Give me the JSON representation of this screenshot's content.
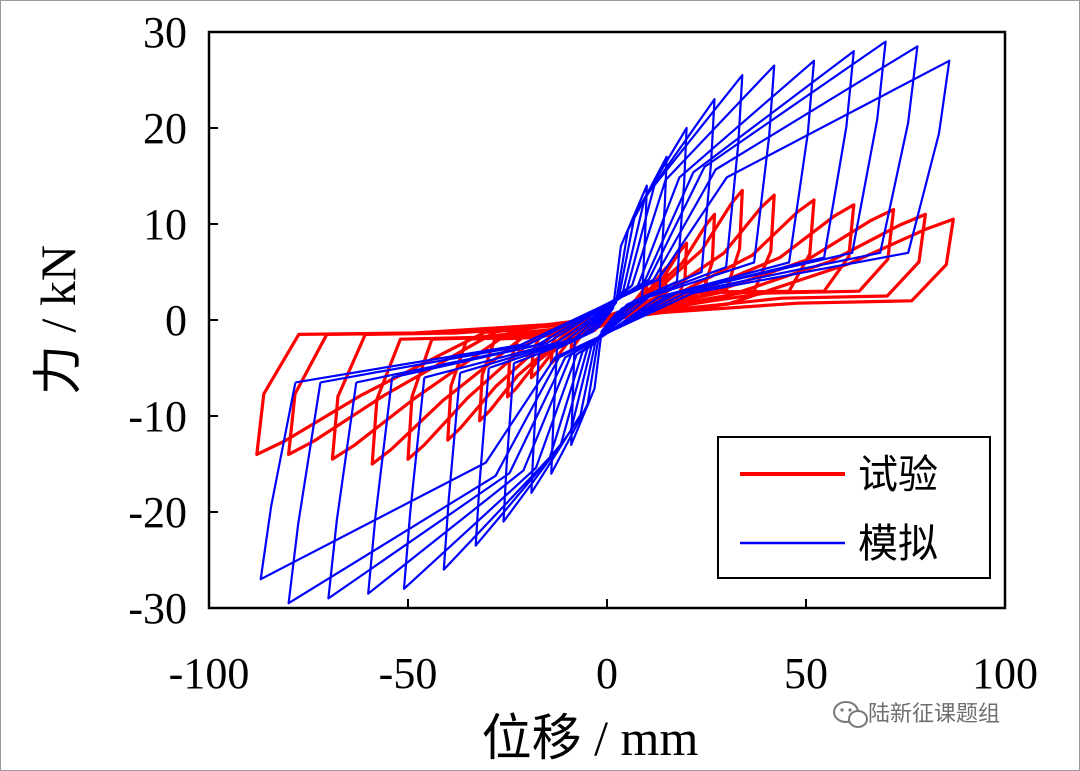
{
  "chart_data": {
    "type": "line",
    "title": "",
    "xlabel": "位移 / mm",
    "ylabel": "力 / kN",
    "xlim": [
      -100,
      100
    ],
    "ylim": [
      -30,
      30
    ],
    "xticks": [
      "-100",
      "-50",
      "0",
      "50",
      "100"
    ],
    "yticks": [
      "30",
      "20",
      "10",
      "0",
      "-10",
      "-20",
      "-30"
    ],
    "grid": false,
    "legend_position": "bottom-right",
    "series": [
      {
        "name": "试验",
        "color": "#ff0000",
        "cycles": [
          {
            "dpos": 10,
            "fpos": 3.5,
            "fposEnd": 1.0,
            "dneg": -9,
            "fneg": -3.0,
            "fnegEnd": -1.0
          },
          {
            "dpos": 15,
            "fpos": 5.5,
            "fposEnd": 1.5,
            "dneg": -14,
            "fneg": -4.5,
            "fnegEnd": -1.2
          },
          {
            "dpos": 20,
            "fpos": 8.0,
            "fposEnd": 2.0,
            "dneg": -19,
            "fneg": -6.0,
            "fnegEnd": -1.5
          },
          {
            "dpos": 27,
            "fpos": 11.0,
            "fposEnd": 2.5,
            "dneg": -25,
            "fneg": -8.0,
            "fnegEnd": -1.7
          },
          {
            "dpos": 34,
            "fpos": 13.5,
            "fposEnd": 3.0,
            "dneg": -32,
            "fneg": -10.5,
            "fnegEnd": -2.0
          },
          {
            "dpos": 42,
            "fpos": 13.0,
            "fposEnd": 3.0,
            "dneg": -40,
            "fneg": -12.5,
            "fnegEnd": -2.0
          },
          {
            "dpos": 52,
            "fpos": 12.5,
            "fposEnd": 3.0,
            "dneg": -50,
            "fneg": -14.5,
            "fnegEnd": -2.0
          },
          {
            "dpos": 62,
            "fpos": 12.0,
            "fposEnd": 3.0,
            "dneg": -59,
            "fneg": -15.0,
            "fnegEnd": -2.0
          },
          {
            "dpos": 72,
            "fpos": 11.5,
            "fposEnd": 3.0,
            "dneg": -69,
            "fneg": -14.5,
            "fnegEnd": -1.5
          },
          {
            "dpos": 80,
            "fpos": 11.0,
            "fposEnd": 2.5,
            "dneg": -80,
            "fneg": -14.0,
            "fnegEnd": -1.5
          },
          {
            "dpos": 87,
            "fpos": 10.5,
            "fposEnd": 2.0,
            "dneg": -88,
            "fneg": -14.0,
            "fnegEnd": -1.5
          }
        ]
      },
      {
        "name": "模拟",
        "color": "#0000ff",
        "cycles": [
          {
            "dpos": 10,
            "fpos": 14.0,
            "fposEnd": 2.0,
            "dneg": -9,
            "fneg": -13.0,
            "fnegEnd": -2.0
          },
          {
            "dpos": 15,
            "fpos": 17.0,
            "fposEnd": 3.0,
            "dneg": -14,
            "fneg": -16.0,
            "fnegEnd": -3.0
          },
          {
            "dpos": 20,
            "fpos": 20.0,
            "fposEnd": 4.0,
            "dneg": -19,
            "fneg": -18.0,
            "fnegEnd": -3.5
          },
          {
            "dpos": 27,
            "fpos": 23.0,
            "fposEnd": 5.0,
            "dneg": -26,
            "fneg": -21.0,
            "fnegEnd": -4.5
          },
          {
            "dpos": 34,
            "fpos": 25.5,
            "fposEnd": 5.5,
            "dneg": -33,
            "fneg": -23.5,
            "fnegEnd": -5.0
          },
          {
            "dpos": 42,
            "fpos": 26.5,
            "fposEnd": 6.0,
            "dneg": -41,
            "fneg": -26.0,
            "fnegEnd": -5.5
          },
          {
            "dpos": 52,
            "fpos": 27.0,
            "fposEnd": 6.0,
            "dneg": -51,
            "fneg": -28.0,
            "fnegEnd": -6.0
          },
          {
            "dpos": 62,
            "fpos": 28.0,
            "fposEnd": 6.5,
            "dneg": -60,
            "fneg": -28.5,
            "fnegEnd": -6.0
          },
          {
            "dpos": 70,
            "fpos": 29.0,
            "fposEnd": 7.0,
            "dneg": -70,
            "fneg": -29.0,
            "fnegEnd": -6.5
          },
          {
            "dpos": 78,
            "fpos": 28.5,
            "fposEnd": 7.0,
            "dneg": -80,
            "fneg": -29.5,
            "fnegEnd": -6.5
          },
          {
            "dpos": 86,
            "fpos": 27.0,
            "fposEnd": 7.0,
            "dneg": -87,
            "fneg": -27.0,
            "fnegEnd": -6.5
          }
        ]
      }
    ]
  },
  "watermark": {
    "icon": "wechat-icon",
    "text": "陆新征课题组"
  }
}
